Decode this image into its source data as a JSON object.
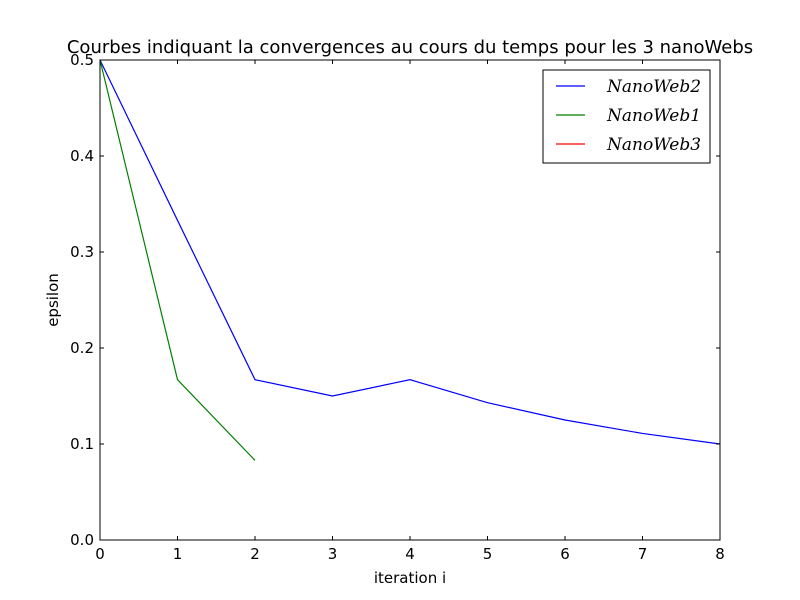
{
  "chart_data": {
    "type": "line",
    "title": "Courbes indiquant la convergences au cours du temps pour les 3 nanoWebs",
    "xlabel": "iteration i",
    "ylabel": "epsilon",
    "xlim": [
      0,
      8
    ],
    "ylim": [
      0,
      0.5
    ],
    "xticks": [
      "0",
      "1",
      "2",
      "3",
      "4",
      "5",
      "6",
      "7",
      "8"
    ],
    "yticks": [
      "0.0",
      "0.1",
      "0.2",
      "0.3",
      "0.4",
      "0.5"
    ],
    "grid": false,
    "legend_position": "top-right",
    "series": [
      {
        "name": "NanoWeb2",
        "color": "#0000ff",
        "x": [
          0,
          1,
          2,
          3,
          4,
          5,
          6,
          7,
          8
        ],
        "y": [
          0.5,
          0.333,
          0.167,
          0.15,
          0.167,
          0.143,
          0.125,
          0.111,
          0.1
        ]
      },
      {
        "name": "NanoWeb1",
        "color": "#008000",
        "x": [
          0,
          1,
          2
        ],
        "y": [
          0.5,
          0.167,
          0.083
        ]
      },
      {
        "name": "NanoWeb3",
        "color": "#ff0000",
        "x": [],
        "y": []
      }
    ]
  }
}
